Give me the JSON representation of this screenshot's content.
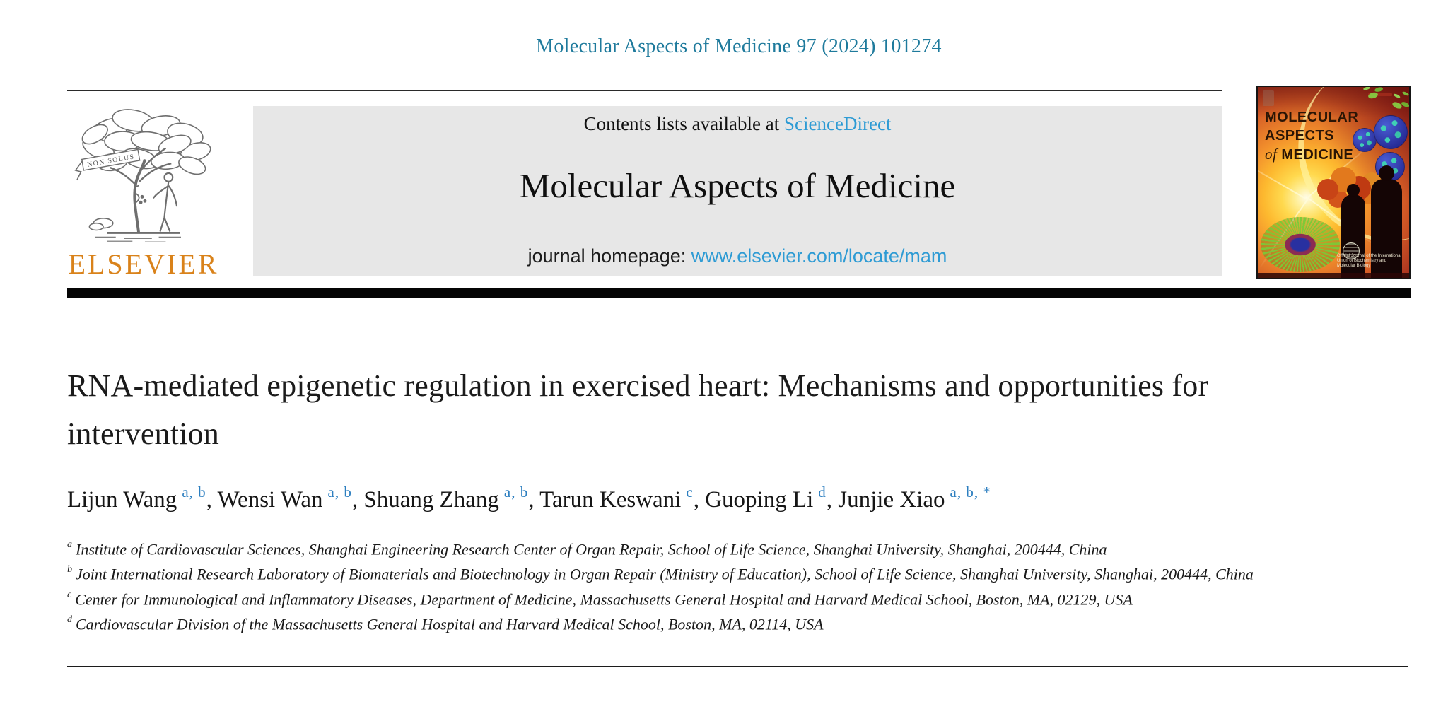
{
  "page": {
    "citation": "Molecular Aspects of Medicine 97 (2024) 101274"
  },
  "header": {
    "contents_prefix": "Contents lists available at ",
    "sciencedirect_label": "ScienceDirect",
    "journal_title": "Molecular Aspects of Medicine",
    "homepage_prefix": "journal homepage: ",
    "homepage_url": "www.elsevier.com/locate/mam",
    "publisher": "ELSEVIER",
    "logo_motto": "NON SOLUS",
    "cover": {
      "line1": "MOLECULAR",
      "line2": "ASPECTS",
      "of_word": "of",
      "line3": " MEDICINE",
      "footer_text": "Official Journal of the International Union of Biochemistry and Molecular Biology"
    }
  },
  "article": {
    "title": "RNA-mediated epigenetic regulation in exercised heart: Mechanisms and opportunities for intervention",
    "authors": [
      {
        "name": "Lijun Wang",
        "sup": "a, b"
      },
      {
        "name": "Wensi Wan",
        "sup": "a, b"
      },
      {
        "name": "Shuang Zhang",
        "sup": "a, b"
      },
      {
        "name": "Tarun Keswani",
        "sup": "c"
      },
      {
        "name": "Guoping Li",
        "sup": "d"
      },
      {
        "name": "Junjie Xiao",
        "sup": "a, b, *"
      }
    ],
    "affiliations": [
      {
        "marker": "a",
        "text": "Institute of Cardiovascular Sciences, Shanghai Engineering Research Center of Organ Repair, School of Life Science, Shanghai University, Shanghai, 200444, China"
      },
      {
        "marker": "b",
        "text": "Joint International Research Laboratory of Biomaterials and Biotechnology in Organ Repair (Ministry of Education), School of Life Science, Shanghai University, Shanghai, 200444, China"
      },
      {
        "marker": "c",
        "text": "Center for Immunological and Inflammatory Diseases, Department of Medicine, Massachusetts General Hospital and Harvard Medical School, Boston, MA, 02129, USA"
      },
      {
        "marker": "d",
        "text": "Cardiovascular Division of the Massachusetts General Hospital and Harvard Medical School, Boston, MA, 02114, USA"
      }
    ]
  },
  "colors": {
    "citation_teal": "#1e7a9c",
    "link_blue": "#2e9bd4",
    "superscript_blue": "#2d7fc0",
    "elsevier_orange": "#d9821a",
    "banner_gray": "#e7e7e7",
    "separator_bar": "#050505"
  }
}
